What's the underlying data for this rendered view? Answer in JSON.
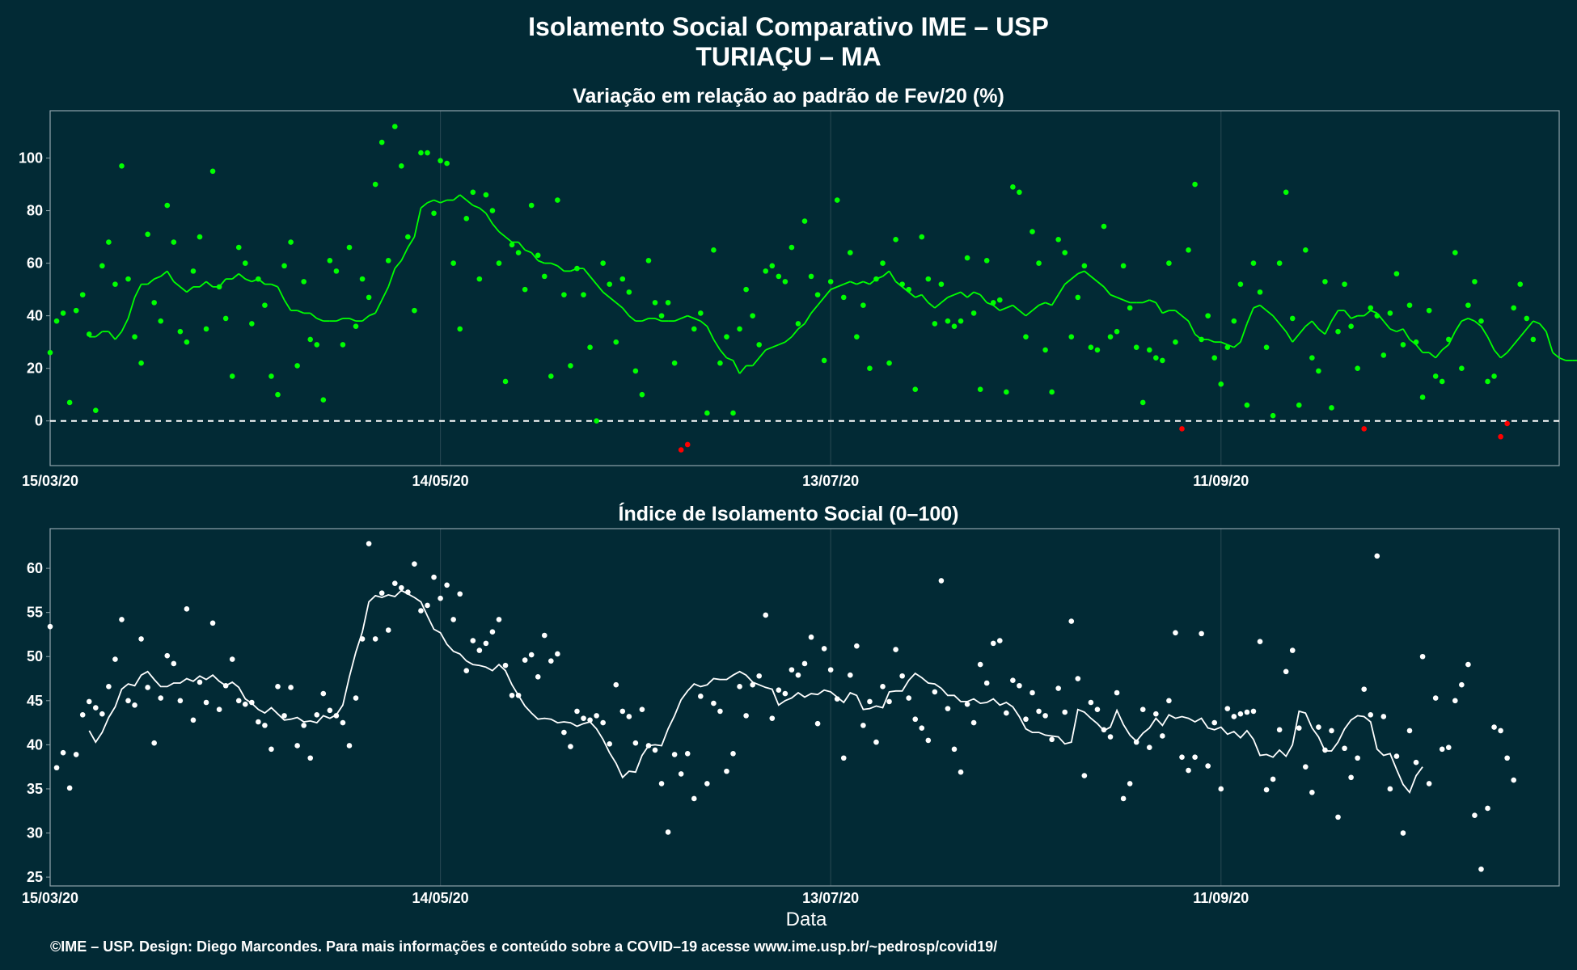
{
  "header": {
    "title": "Isolamento Social Comparativo IME – USP",
    "subtitle": "TURIAÇU – MA"
  },
  "footer": {
    "xlabel": "Data",
    "credit": "©IME – USP. Design: Diego Marcondes. Para mais informações e conteúdo sobre a COVID–19 acesse www.ime.usp.br/~pedrosp/covid19/"
  },
  "colors": {
    "background": "#022a35",
    "panel_border": "#8fa3aa",
    "grid": "#23444f",
    "positive": "#00ff00",
    "negative": "#ff0000",
    "index": "#ffffff"
  },
  "chart_data": [
    {
      "type": "scatter",
      "title": "Variação em relação ao padrão de Fev/20 (%)",
      "xlabel": "",
      "ylabel": "",
      "xlim": [
        "2020-03-15",
        "2020-11-02"
      ],
      "ylim": [
        -17,
        118
      ],
      "yticks": [
        0,
        20,
        40,
        60,
        80,
        100
      ],
      "xticks": [
        "15/03/20",
        "14/05/20",
        "13/07/20",
        "11/09/20"
      ],
      "reference_line": 0,
      "grid": true,
      "legend": "none",
      "series": [
        {
          "role": "daily points (green when positive, red when negative)",
          "x_start": "2020-03-15",
          "values": [
            26,
            38,
            41,
            7,
            42,
            48,
            33,
            4,
            59,
            68,
            52,
            97,
            54,
            32,
            22,
            71,
            45,
            38,
            82,
            68,
            34,
            30,
            57,
            70,
            35,
            95,
            51,
            39,
            17,
            66,
            60,
            37,
            54,
            44,
            17,
            10,
            59,
            68,
            21,
            53,
            31,
            29,
            8,
            61,
            57,
            29,
            66,
            36,
            54,
            47,
            90,
            106,
            61,
            112,
            97,
            70,
            42,
            102,
            102,
            79,
            99,
            98,
            60,
            35,
            77,
            87,
            54,
            86,
            80,
            60,
            15,
            67,
            64,
            50,
            82,
            63,
            55,
            17,
            84,
            48,
            21,
            58,
            48,
            28,
            0,
            60,
            52,
            30,
            54,
            49,
            19,
            10,
            61,
            45,
            40,
            45,
            22,
            -11,
            -9,
            35,
            41,
            3,
            65,
            22,
            32,
            3,
            35,
            50,
            40,
            29,
            57,
            59,
            55,
            53,
            66,
            37,
            76,
            55,
            48,
            23,
            53,
            84,
            47,
            64,
            32,
            44,
            20,
            54,
            60,
            22,
            69,
            52,
            50,
            12,
            70,
            54,
            37,
            52,
            38,
            36,
            38,
            62,
            41,
            12,
            61,
            45,
            46,
            11,
            89,
            87,
            32,
            72,
            60,
            27,
            11,
            69,
            64,
            32,
            47,
            59,
            28,
            27,
            74,
            32,
            34,
            59,
            43,
            28,
            7,
            27,
            24,
            23,
            60,
            30,
            -3,
            65,
            90,
            31,
            40,
            24,
            14,
            28,
            38,
            52,
            6,
            60,
            49,
            28,
            2,
            60,
            87,
            39,
            6,
            65,
            24,
            19,
            53,
            5,
            34,
            52,
            36,
            20,
            -3,
            43,
            40,
            25,
            41,
            56,
            29,
            44,
            30,
            9,
            42,
            17,
            15,
            31,
            64,
            20,
            44,
            53,
            38,
            15,
            17,
            -6,
            -1,
            43,
            52,
            39,
            31
          ]
        },
        {
          "role": "7-day moving average",
          "x_start": "2020-03-21",
          "values": [
            32,
            32,
            34,
            34,
            31,
            34,
            39,
            47,
            52,
            52,
            54,
            55,
            57,
            53,
            51,
            49,
            51,
            51,
            53,
            51,
            51,
            54,
            54,
            56,
            54,
            53,
            54,
            52,
            52,
            51,
            46,
            42,
            42,
            41,
            41,
            39,
            38,
            38,
            38,
            39,
            39,
            38,
            38,
            40,
            41,
            46,
            51,
            58,
            61,
            66,
            70,
            81,
            83,
            84,
            83,
            84,
            84,
            86,
            84,
            82,
            81,
            79,
            75,
            72,
            70,
            68,
            68,
            65,
            64,
            61,
            60,
            60,
            59,
            57,
            57,
            58,
            58,
            55,
            52,
            49,
            47,
            45,
            43,
            40,
            38,
            38,
            39,
            39,
            38,
            38,
            38,
            39,
            40,
            39,
            38,
            36,
            31,
            27,
            24,
            23,
            18,
            21,
            21,
            24,
            27,
            28,
            29,
            30,
            32,
            35,
            37,
            41,
            44,
            47,
            50,
            51,
            52,
            53,
            52,
            53,
            52,
            54,
            55,
            57,
            53,
            51,
            49,
            47,
            48,
            45,
            43,
            45,
            47,
            48,
            49,
            47,
            49,
            48,
            45,
            44,
            42,
            43,
            44,
            42,
            40,
            42,
            44,
            45,
            44,
            48,
            52,
            54,
            56,
            57,
            55,
            53,
            51,
            48,
            47,
            46,
            45,
            45,
            45,
            46,
            45,
            41,
            42,
            42,
            40,
            38,
            33,
            31,
            31,
            30,
            30,
            29,
            28,
            30,
            37,
            43,
            44,
            42,
            40,
            37,
            34,
            30,
            33,
            36,
            38,
            35,
            33,
            38,
            42,
            42,
            39,
            40,
            40,
            42,
            41,
            38,
            35,
            34,
            35,
            31,
            29,
            26,
            26,
            24,
            27,
            29,
            34,
            38,
            39,
            38,
            36,
            32,
            27,
            24,
            26,
            29,
            32,
            35,
            38,
            37,
            34,
            26,
            24,
            23,
            23,
            23,
            25
          ]
        }
      ]
    },
    {
      "type": "scatter",
      "title": "Índice de Isolamento Social (0–100)",
      "xlabel": "Data",
      "ylabel": "",
      "xlim": [
        "2020-03-15",
        "2020-11-02"
      ],
      "ylim": [
        24,
        64.5
      ],
      "yticks": [
        25,
        30,
        35,
        40,
        45,
        50,
        55,
        60
      ],
      "xticks": [
        "15/03/20",
        "14/05/20",
        "13/07/20",
        "11/09/20"
      ],
      "grid": true,
      "legend": "none",
      "series": [
        {
          "role": "daily points",
          "x_start": "2020-03-15",
          "values": [
            53.4,
            37.4,
            39.1,
            35.1,
            38.9,
            43.4,
            44.9,
            44.2,
            43.5,
            46.6,
            49.7,
            54.2,
            45.0,
            44.5,
            52.0,
            46.5,
            40.2,
            45.3,
            50.1,
            49.2,
            45.0,
            55.4,
            42.8,
            47.1,
            44.8,
            53.8,
            44.0,
            46.7,
            49.7,
            45.0,
            44.6,
            44.8,
            42.6,
            42.2,
            39.5,
            46.6,
            43.3,
            46.5,
            39.9,
            42.2,
            38.5,
            43.4,
            45.8,
            43.9,
            43.3,
            42.5,
            39.9,
            45.3,
            52.0,
            62.8,
            52.0,
            57.2,
            53.0,
            58.3,
            57.8,
            57.3,
            60.5,
            55.2,
            55.8,
            59.0,
            56.6,
            58.1,
            54.2,
            57.1,
            48.4,
            51.8,
            50.7,
            51.5,
            52.8,
            54.2,
            49.0,
            45.6,
            45.6,
            49.6,
            50.2,
            47.7,
            52.4,
            49.5,
            50.3,
            41.4,
            39.8,
            43.8,
            43.0,
            42.8,
            43.3,
            42.5,
            40.1,
            46.8,
            43.8,
            43.2,
            40.2,
            44.0,
            39.9,
            39.4,
            35.6,
            30.1,
            38.9,
            36.7,
            39.0,
            33.9,
            45.5,
            35.6,
            44.7,
            43.8,
            37.0,
            39.0,
            46.6,
            43.3,
            46.8,
            47.8,
            54.7,
            43.0,
            46.2,
            45.8,
            48.5,
            47.9,
            49.2,
            52.2,
            42.4,
            50.9,
            48.5,
            45.2,
            38.5,
            47.9,
            51.2,
            42.2,
            44.9,
            40.3,
            46.6,
            44.9,
            50.8,
            47.8,
            45.3,
            42.9,
            41.9,
            40.5,
            46.0,
            58.6,
            44.1,
            39.5,
            36.9,
            44.6,
            42.5,
            49.1,
            47.0,
            51.5,
            51.8,
            43.6,
            47.3,
            46.7,
            42.9,
            45.9,
            43.8,
            43.3,
            40.6,
            46.4,
            43.7,
            54.0,
            47.5,
            36.5,
            44.8,
            44.0,
            41.7,
            40.9,
            45.9,
            33.9,
            35.6,
            40.3,
            44.0,
            39.7,
            43.5,
            41.0,
            45.0,
            52.7,
            38.6,
            37.1,
            38.6,
            52.6,
            37.6,
            42.5,
            35.0,
            44.1,
            43.2,
            43.5,
            43.7,
            43.8,
            51.7,
            34.9,
            36.1,
            41.7,
            48.3,
            50.7,
            41.9,
            37.5,
            34.6,
            42.0,
            39.4,
            41.6,
            31.8,
            39.6,
            36.3,
            38.5,
            46.3,
            43.4,
            61.4,
            43.2,
            35.0,
            38.7,
            30.0,
            41.6,
            38.0,
            50.0,
            35.6,
            45.3,
            39.5,
            39.7,
            45.0,
            46.8,
            49.1,
            32.0,
            25.9,
            32.8,
            42.0,
            41.6,
            38.5,
            36.0
          ]
        },
        {
          "role": "7-day moving average",
          "x_start": "2020-03-21",
          "values": [
            41.6,
            40.3,
            41.4,
            43.1,
            44.3,
            46.3,
            46.9,
            46.7,
            47.9,
            48.3,
            47.4,
            46.6,
            46.6,
            47.0,
            47.0,
            47.5,
            47.2,
            47.8,
            47.4,
            47.9,
            47.2,
            46.7,
            47.1,
            46.5,
            45.2,
            44.7,
            44.0,
            43.6,
            44.2,
            43.5,
            42.8,
            42.9,
            43.1,
            42.6,
            42.7,
            42.5,
            43.3,
            43.0,
            43.4,
            44.5,
            47.7,
            50.5,
            52.8,
            56.2,
            56.9,
            56.7,
            57.0,
            56.8,
            57.5,
            57.1,
            56.7,
            56.2,
            54.6,
            53.1,
            52.7,
            51.4,
            50.6,
            50.3,
            49.5,
            49.1,
            49.0,
            48.8,
            48.4,
            49.1,
            48.4,
            46.8,
            45.6,
            44.4,
            43.6,
            42.9,
            43.0,
            42.9,
            42.5,
            42.6,
            42.5,
            42.1,
            42.4,
            42.6,
            41.8,
            40.6,
            39.1,
            37.9,
            36.3,
            37.0,
            36.9,
            38.8,
            39.9,
            40.0,
            39.9,
            41.8,
            43.3,
            45.1,
            46.1,
            46.9,
            46.6,
            46.8,
            47.5,
            47.4,
            47.4,
            47.9,
            48.3,
            47.9,
            47.1,
            46.8,
            46.5,
            46.3,
            44.5,
            45.0,
            45.3,
            45.9,
            45.4,
            45.8,
            45.7,
            46.2,
            46.0,
            45.4,
            44.8,
            45.9,
            45.6,
            44.0,
            44.1,
            44.4,
            44.2,
            46.0,
            46.1,
            46.1,
            47.3,
            48.1,
            47.6,
            47.0,
            46.9,
            46.4,
            45.6,
            45.6,
            44.9,
            44.9,
            45.2,
            44.7,
            44.8,
            45.2,
            44.5,
            44.8,
            44.3,
            43.2,
            41.8,
            41.4,
            41.4,
            41.1,
            41.0,
            40.9,
            40.1,
            40.3,
            44.0,
            43.7,
            43.0,
            42.4,
            41.6,
            42.0,
            43.9,
            42.3,
            41.1,
            40.4,
            41.3,
            41.9,
            43.0,
            42.2,
            43.4,
            43.0,
            43.2,
            43.0,
            42.6,
            43.0,
            41.9,
            41.7,
            42.0,
            41.2,
            41.5,
            40.8,
            41.6,
            40.6,
            38.8,
            38.9,
            38.6,
            39.4,
            38.7,
            40.0,
            43.8,
            43.6,
            41.9,
            40.9,
            39.3,
            39.3,
            40.3,
            41.8,
            42.8,
            43.3,
            43.2,
            42.6,
            39.5,
            38.8,
            39.0,
            37.2,
            35.5,
            34.6,
            36.5,
            37.5
          ]
        }
      ]
    }
  ]
}
